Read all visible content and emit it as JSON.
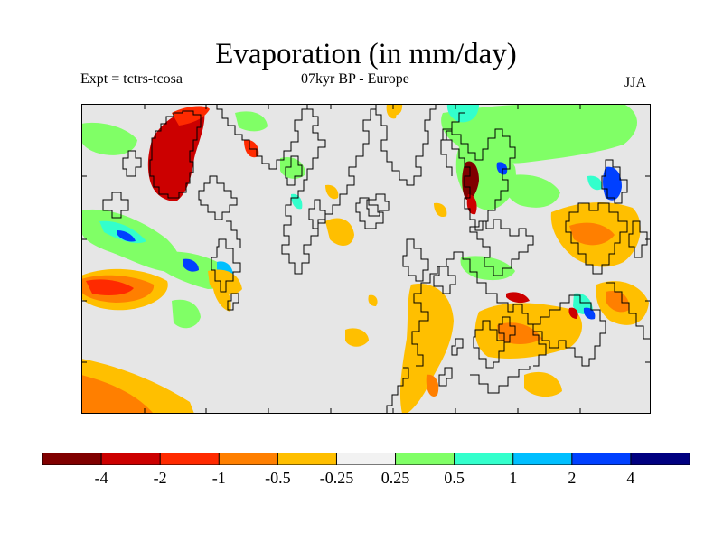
{
  "header": {
    "title": "Evaporation (in mm/day)",
    "experiment": "Expt = tctrs-tcosa",
    "period_region": "07kyr BP - Europe",
    "season": "JJA"
  },
  "colors": {
    "land_no_data": "#e6e6e6",
    "coastline": "#000000"
  },
  "colorbar": {
    "colors": [
      "#800000",
      "#cc0000",
      "#ff2a00",
      "#ff7f00",
      "#ffbf00",
      "#f2f2f2",
      "#80ff66",
      "#33ffcc",
      "#00bfff",
      "#0040ff",
      "#000080"
    ],
    "labels": [
      "-4",
      "-2",
      "-1",
      "-0.5",
      "-0.25",
      "0.25",
      "0.5",
      "1",
      "2",
      "4"
    ]
  }
}
